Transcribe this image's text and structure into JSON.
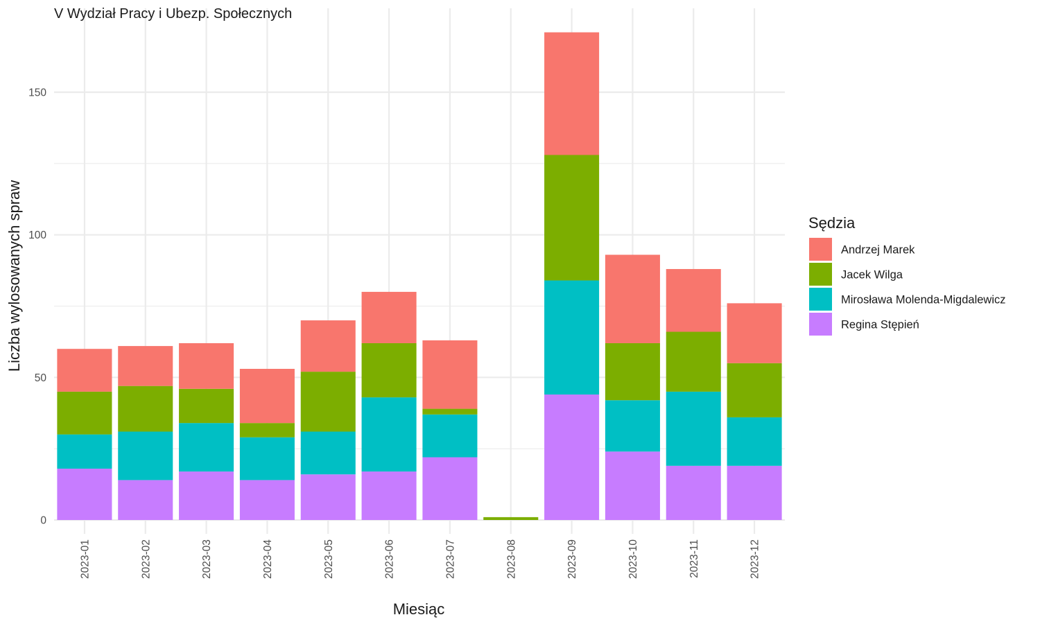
{
  "chart_data": {
    "type": "bar",
    "stacked": true,
    "title": "V Wydział Pracy i Ubezp. Społecznych",
    "xlabel": "Miesiąc",
    "ylabel": "Liczba wylosowanych spraw",
    "ylim": [
      0,
      170
    ],
    "yticks": [
      0,
      50,
      100,
      150
    ],
    "grid": true,
    "legend_position": "right",
    "legend_title": "Sędzia",
    "categories": [
      "2023-01",
      "2023-02",
      "2023-03",
      "2023-04",
      "2023-05",
      "2023-06",
      "2023-07",
      "2023-08",
      "2023-09",
      "2023-10",
      "2023-11",
      "2023-12"
    ],
    "series": [
      {
        "name": "Andrzej Marek",
        "color": "#F8766D",
        "values": [
          15,
          14,
          16,
          19,
          18,
          18,
          24,
          0,
          43,
          31,
          22,
          21
        ]
      },
      {
        "name": "Jacek Wilga",
        "color": "#7CAE00",
        "values": [
          15,
          16,
          12,
          5,
          21,
          19,
          2,
          1,
          44,
          20,
          21,
          19
        ]
      },
      {
        "name": "Mirosława Molenda-Migdalewicz",
        "color": "#00BFC4",
        "values": [
          12,
          17,
          17,
          15,
          15,
          26,
          15,
          0,
          40,
          18,
          26,
          17
        ]
      },
      {
        "name": "Regina Stępień",
        "color": "#C77CFF",
        "values": [
          18,
          14,
          17,
          14,
          16,
          17,
          22,
          0,
          44,
          24,
          19,
          19
        ]
      }
    ]
  }
}
